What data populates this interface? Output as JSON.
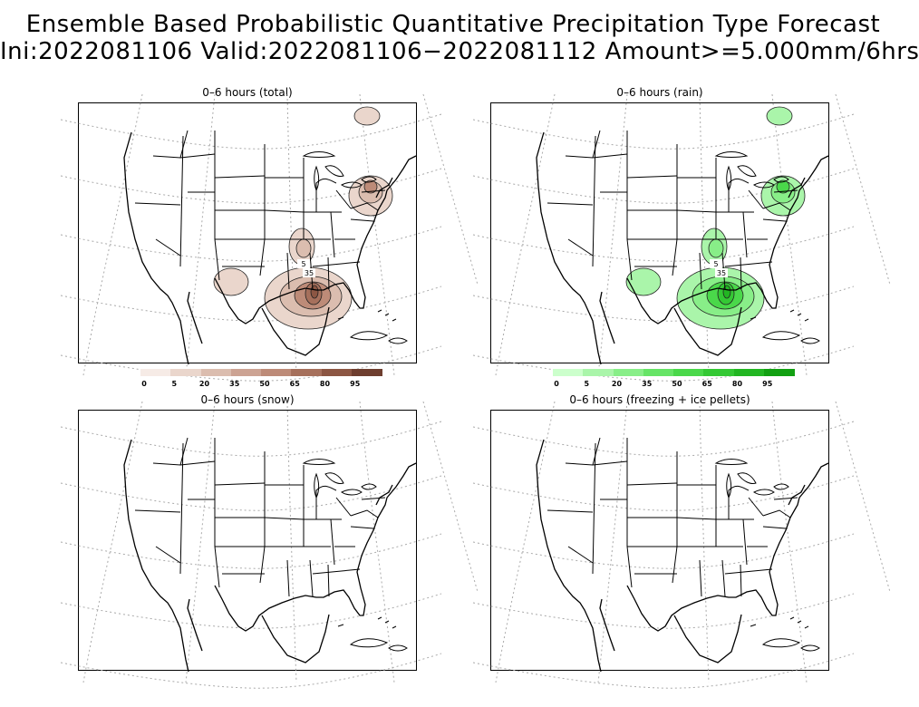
{
  "title": {
    "line1": "Ensemble Based Probabilistic Quantitative Precipitation Type Forecast",
    "line2": "Ini:2022081106 Valid:2022081106−2022081112 Amount>=5.000mm/6hrs"
  },
  "panels": [
    {
      "id": "total",
      "title": "0–6 hours (total)",
      "color_scheme": "brown"
    },
    {
      "id": "rain",
      "title": "0–6 hours (rain)",
      "color_scheme": "green"
    },
    {
      "id": "snow",
      "title": "0–6 hours (snow)",
      "color_scheme": "none"
    },
    {
      "id": "freezing",
      "title": "0–6 hours (freezing + ice pellets)",
      "color_scheme": "none"
    }
  ],
  "contour_labels": {
    "total": [
      "35",
      "5"
    ],
    "rain": [
      "35",
      "5"
    ]
  },
  "colorbars": {
    "total": {
      "labels": [
        "0",
        "5",
        "20",
        "35",
        "50",
        "65",
        "80",
        "95"
      ],
      "colors": [
        "#f6ebe6",
        "#ead6cc",
        "#dbbdaf",
        "#cca393",
        "#bd8b78",
        "#a6705c",
        "#8c5643",
        "#6e3e2f"
      ]
    },
    "rain": {
      "labels": [
        "0",
        "5",
        "20",
        "35",
        "50",
        "65",
        "80",
        "95"
      ],
      "colors": [
        "#ccffcc",
        "#aaf5aa",
        "#88ee88",
        "#66e466",
        "#4ad84a",
        "#34c834",
        "#22b622",
        "#12a012"
      ]
    }
  }
}
